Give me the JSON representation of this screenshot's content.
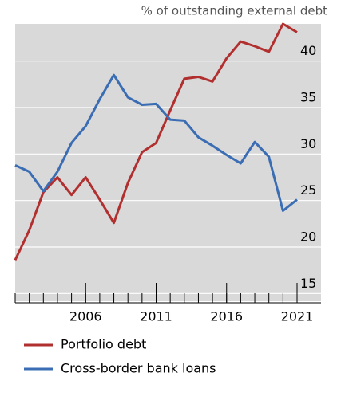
{
  "chart_data": {
    "type": "line",
    "title": "% of outstanding external debt",
    "x": [
      2001,
      2002,
      2003,
      2004,
      2005,
      2006,
      2007,
      2008,
      2009,
      2010,
      2011,
      2012,
      2013,
      2014,
      2015,
      2016,
      2017,
      2018,
      2019,
      2020,
      2021
    ],
    "series": [
      {
        "name": "Portfolio debt",
        "color": "#b22f2f",
        "values": [
          18.6,
          21.8,
          25.9,
          27.5,
          25.6,
          27.5,
          25.1,
          22.6,
          26.9,
          30.2,
          31.2,
          34.7,
          38.1,
          38.3,
          37.8,
          40.3,
          42.1,
          41.6,
          41.0,
          44.0,
          43.1
        ]
      },
      {
        "name": "Cross-border bank loans",
        "color": "#3a6db3",
        "values": [
          28.8,
          28.1,
          26.0,
          28.1,
          31.2,
          33.0,
          35.9,
          38.5,
          36.1,
          35.3,
          35.4,
          33.7,
          33.6,
          31.8,
          30.9,
          29.9,
          29.0,
          31.3,
          29.7,
          23.9,
          25.1
        ]
      }
    ],
    "xlim": [
      2001,
      2021
    ],
    "xticks": [
      2006,
      2011,
      2016,
      2021
    ],
    "ylim": [
      14,
      44
    ],
    "yticks": [
      15,
      20,
      25,
      30,
      35,
      40
    ],
    "grid": true
  }
}
